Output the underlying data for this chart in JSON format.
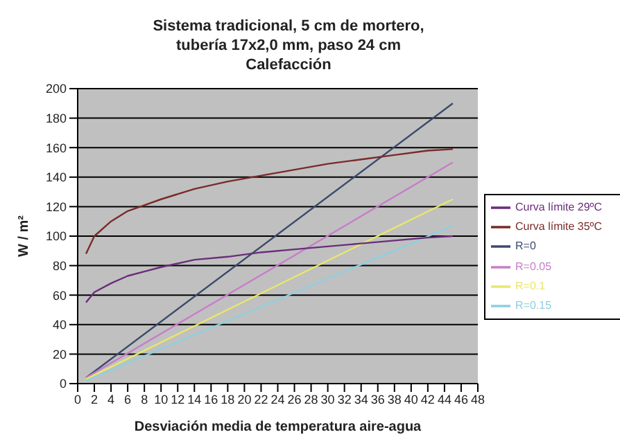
{
  "chart_data": {
    "type": "line",
    "title": "Sistema tradicional, 5 cm de mortero,\ntubería 17x2,0 mm, paso 24 cm\nCalefacción",
    "xlabel": "Desviación media de temperatura aire-agua",
    "ylabel": "W / m²",
    "xlim": [
      0,
      48
    ],
    "xticks": [
      0,
      2,
      4,
      6,
      8,
      10,
      12,
      14,
      16,
      18,
      20,
      22,
      24,
      26,
      28,
      30,
      32,
      34,
      36,
      38,
      40,
      42,
      44,
      46,
      48
    ],
    "ylim": [
      0,
      200
    ],
    "yticks": [
      0,
      20,
      40,
      60,
      80,
      100,
      120,
      140,
      160,
      180,
      200
    ],
    "grid": "y",
    "legend": "right",
    "marker": "none",
    "series": [
      {
        "name": "R=0",
        "color": "#3b4a6b",
        "x": [
          1,
          45
        ],
        "values": [
          4,
          190
        ]
      },
      {
        "name": "R=0.05",
        "color": "#c77dc9",
        "x": [
          1,
          45
        ],
        "values": [
          4,
          150
        ]
      },
      {
        "name": "R=0.1",
        "color": "#e8e86a",
        "x": [
          1,
          45
        ],
        "values": [
          3,
          125
        ]
      },
      {
        "name": "R=0.15",
        "color": "#8ecfe0",
        "x": [
          1,
          45
        ],
        "values": [
          2,
          107
        ]
      },
      {
        "name": "Curva límite 29ºC",
        "color": "#6a2d7a",
        "x": [
          1,
          2,
          4,
          6,
          8,
          10,
          14,
          18,
          22,
          26,
          30,
          34,
          38,
          42,
          45
        ],
        "values": [
          55,
          62,
          68,
          73,
          76,
          79,
          84,
          86,
          89,
          91,
          93,
          95,
          97,
          99,
          100
        ]
      },
      {
        "name": "Curva límite 35ºC",
        "color": "#7a2a2a",
        "x": [
          1,
          2,
          4,
          6,
          8,
          10,
          14,
          18,
          22,
          26,
          30,
          34,
          38,
          42,
          45
        ],
        "values": [
          88,
          100,
          110,
          117,
          121,
          125,
          132,
          137,
          141,
          145,
          149,
          152,
          155,
          158,
          159
        ]
      }
    ]
  }
}
